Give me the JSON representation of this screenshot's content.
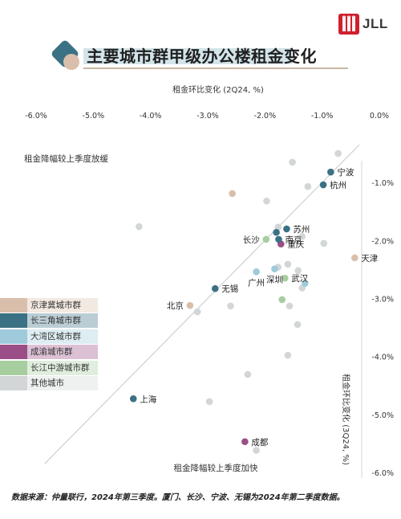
{
  "brand": {
    "logo_text": "JLL",
    "logo_color": "#d0202e"
  },
  "header": {
    "title": "主要城市群甲级办公楼租金变化"
  },
  "chart_data": {
    "type": "scatter",
    "x_axis": {
      "label": "租金环比变化 (2Q24, %)",
      "range": [
        -6.0,
        0.0
      ],
      "ticks": [
        -6.0,
        -5.0,
        -4.0,
        -3.0,
        -2.0,
        -1.0,
        0.0
      ],
      "tick_labels": [
        "-6.0%",
        "-5.0%",
        "-4.0%",
        "-3.0%",
        "-2.0%",
        "-1.0%",
        "0.0%"
      ]
    },
    "y_axis": {
      "label": "租金环比变化 (3Q24, %)",
      "range": [
        -6.0,
        0.0
      ],
      "ticks": [
        -1.0,
        -2.0,
        -3.0,
        -4.0,
        -5.0,
        -6.0
      ],
      "tick_labels": [
        "-1.0%",
        "-2.0%",
        "-3.0%",
        "-4.0%",
        "-5.0%",
        "-6.0%"
      ]
    },
    "reference_line": "y = x",
    "quadrant_labels": {
      "upper": "租金降幅较上季度放缓",
      "lower": "租金降幅较上季度加快"
    },
    "legend_placement": "left",
    "groups": [
      {
        "key": "jjj",
        "name": "京津冀城市群",
        "color": "#d9bfab"
      },
      {
        "key": "csj",
        "name": "长三角城市群",
        "color": "#3b7184"
      },
      {
        "key": "dwq",
        "name": "大湾区城市群",
        "color": "#9fcadb"
      },
      {
        "key": "cy",
        "name": "成渝城市群",
        "color": "#9a4d86"
      },
      {
        "key": "cjzy",
        "name": "长江中游城市群",
        "color": "#a7ce9f"
      },
      {
        "key": "other",
        "name": "其他城市",
        "color": "#d2d6d7"
      }
    ],
    "points": [
      {
        "label": "宁波",
        "group": "csj",
        "x": -0.85,
        "y": -0.82,
        "label_pos": "right"
      },
      {
        "label": "杭州",
        "group": "csj",
        "x": -0.98,
        "y": -1.04,
        "label_pos": "right"
      },
      {
        "label": "苏州",
        "group": "csj",
        "x": -1.62,
        "y": -1.8,
        "label_pos": "right"
      },
      {
        "label": "南京",
        "group": "csj",
        "x": -1.76,
        "y": -1.98,
        "label_pos": "right"
      },
      {
        "label": "",
        "group": "csj",
        "x": -1.8,
        "y": -1.86
      },
      {
        "label": "重庆",
        "group": "cy",
        "x": -1.72,
        "y": -2.06,
        "label_pos": "right"
      },
      {
        "label": "长沙",
        "group": "cjzy",
        "x": -1.98,
        "y": -1.98,
        "label_pos": "left"
      },
      {
        "label": "天津",
        "group": "jjj",
        "x": -0.43,
        "y": -2.3,
        "label_pos": "right"
      },
      {
        "label": "广州",
        "group": "dwq",
        "x": -2.15,
        "y": -2.54,
        "label_pos": "below"
      },
      {
        "label": "深圳",
        "group": "dwq",
        "x": -1.83,
        "y": -2.49,
        "label_pos": "below"
      },
      {
        "label": "武汉",
        "group": "cjzy",
        "x": -1.65,
        "y": -2.65,
        "label_pos": "right"
      },
      {
        "label": "",
        "group": "dwq",
        "x": -1.3,
        "y": -2.74
      },
      {
        "label": "无锡",
        "group": "csj",
        "x": -2.87,
        "y": -2.83,
        "label_pos": "right"
      },
      {
        "label": "北京",
        "group": "jjj",
        "x": -3.31,
        "y": -3.12,
        "label_pos": "left"
      },
      {
        "label": "上海",
        "group": "csj",
        "x": -4.3,
        "y": -4.73,
        "label_pos": "right"
      },
      {
        "label": "成都",
        "group": "cy",
        "x": -2.35,
        "y": -5.47,
        "label_pos": "right"
      },
      {
        "label": "",
        "group": "jjj",
        "x": -2.57,
        "y": -1.19
      },
      {
        "label": "",
        "group": "cjzy",
        "x": -1.7,
        "y": -3.02
      },
      {
        "label": "",
        "group": "other",
        "x": -0.72,
        "y": -0.5
      },
      {
        "label": "",
        "group": "other",
        "x": -1.52,
        "y": -0.65
      },
      {
        "label": "",
        "group": "other",
        "x": -1.25,
        "y": -1.07
      },
      {
        "label": "",
        "group": "other",
        "x": -1.97,
        "y": -1.32
      },
      {
        "label": "",
        "group": "other",
        "x": -4.2,
        "y": -1.76
      },
      {
        "label": "",
        "group": "other",
        "x": -1.77,
        "y": -1.77
      },
      {
        "label": "",
        "group": "other",
        "x": -1.35,
        "y": -1.93
      },
      {
        "label": "",
        "group": "other",
        "x": -0.97,
        "y": -2.05
      },
      {
        "label": "",
        "group": "other",
        "x": -1.6,
        "y": -2.41
      },
      {
        "label": "",
        "group": "other",
        "x": -1.77,
        "y": -2.46
      },
      {
        "label": "",
        "group": "other",
        "x": -1.42,
        "y": -2.52
      },
      {
        "label": "",
        "group": "other",
        "x": -1.35,
        "y": -2.82
      },
      {
        "label": "",
        "group": "other",
        "x": -2.6,
        "y": -3.13
      },
      {
        "label": "",
        "group": "other",
        "x": -1.57,
        "y": -3.13
      },
      {
        "label": "",
        "group": "other",
        "x": -3.18,
        "y": -3.23
      },
      {
        "label": "",
        "group": "other",
        "x": -1.43,
        "y": -3.45
      },
      {
        "label": "",
        "group": "other",
        "x": -1.6,
        "y": -3.98
      },
      {
        "label": "",
        "group": "other",
        "x": -2.3,
        "y": -4.31
      },
      {
        "label": "",
        "group": "other",
        "x": -2.97,
        "y": -4.78
      },
      {
        "label": "",
        "group": "other",
        "x": -2.15,
        "y": -5.62
      }
    ]
  },
  "source": {
    "text": "数据来源：仲量联行，2024年第三季度。厦门、长沙、宁波、无锡为2024年第二季度数据。"
  }
}
